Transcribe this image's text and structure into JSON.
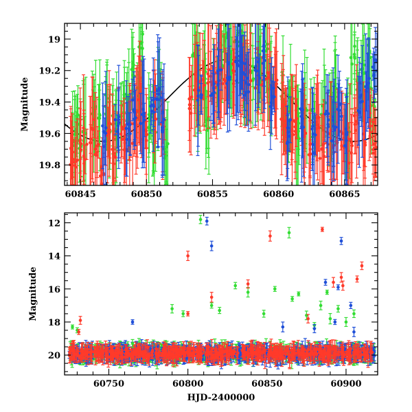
{
  "chart_data": [
    {
      "type": "scatter",
      "panel": "top",
      "xlabel": "",
      "ylabel": "Magnitude",
      "xlim": [
        60843.8,
        60867.5
      ],
      "ylim": [
        19.93,
        18.9
      ],
      "y_inverted": true,
      "xticks": [
        60845,
        60850,
        60855,
        60860,
        60865
      ],
      "xtick_labels": [
        "60845",
        "60850",
        "60855",
        "60860",
        "60865"
      ],
      "yticks": [
        19,
        19.2,
        19.4,
        19.6,
        19.8
      ],
      "ytick_labels": [
        "19",
        "19.2",
        "19.4",
        "19.6",
        "19.8"
      ],
      "model_curve": {
        "kind": "sinusoid",
        "mean": 19.39,
        "amplitude": 0.26,
        "period_days": 19,
        "peak_at": 60856.2,
        "color": "#000000"
      },
      "series_colors": {
        "g": "#33dd33",
        "r": "#ff3a2a",
        "b": "#1f4fd8"
      },
      "series": [
        {
          "color": "#33dd33",
          "points": [
            [
              60844.5,
              19.62
            ],
            [
              60844.7,
              19.55
            ],
            [
              60845.0,
              19.7
            ],
            [
              60845.3,
              19.58
            ],
            [
              60846.0,
              19.48
            ],
            [
              60846.3,
              19.52
            ],
            [
              60847.0,
              19.4
            ],
            [
              60847.3,
              19.55
            ],
            [
              60847.6,
              19.62
            ],
            [
              60848.2,
              19.45
            ],
            [
              60848.5,
              19.35
            ],
            [
              60848.9,
              19.2
            ],
            [
              60849.4,
              19.4
            ],
            [
              60849.6,
              19.05
            ],
            [
              60850.2,
              19.5
            ],
            [
              60850.6,
              19.62
            ],
            [
              60851.0,
              19.35
            ],
            [
              60851.5,
              19.7
            ],
            [
              60853.6,
              19.1
            ],
            [
              60853.9,
              19.3
            ],
            [
              60854.3,
              19.2
            ],
            [
              60854.6,
              19.55
            ],
            [
              60855.2,
              19.3
            ],
            [
              60855.6,
              19.1
            ],
            [
              60856.0,
              19.0
            ],
            [
              60856.4,
              19.15
            ],
            [
              60856.8,
              19.05
            ],
            [
              60857.2,
              18.98
            ],
            [
              60857.5,
              19.2
            ],
            [
              60858.0,
              19.25
            ],
            [
              60858.5,
              19.15
            ],
            [
              60859.0,
              19.05
            ],
            [
              60859.4,
              19.3
            ],
            [
              60860.3,
              19.35
            ],
            [
              60860.6,
              19.55
            ],
            [
              60861.0,
              19.4
            ],
            [
              60861.5,
              19.6
            ],
            [
              60862.0,
              19.45
            ],
            [
              60862.6,
              19.55
            ],
            [
              60863.4,
              19.45
            ],
            [
              60864.0,
              19.5
            ],
            [
              60864.4,
              19.35
            ],
            [
              60865.2,
              19.6
            ],
            [
              60865.6,
              19.1
            ],
            [
              60866.0,
              19.3
            ],
            [
              60866.4,
              19.2
            ],
            [
              60866.8,
              19.05
            ],
            [
              60867.1,
              19.4
            ]
          ]
        },
        {
          "color": "#ff3a2a",
          "points": [
            [
              60844.3,
              19.7
            ],
            [
              60844.6,
              19.8
            ],
            [
              60845.1,
              19.65
            ],
            [
              60845.4,
              19.75
            ],
            [
              60845.9,
              19.6
            ],
            [
              60846.2,
              19.7
            ],
            [
              60846.6,
              19.85
            ],
            [
              60847.1,
              19.62
            ],
            [
              60847.5,
              19.72
            ],
            [
              60848.0,
              19.55
            ],
            [
              60848.4,
              19.68
            ],
            [
              60848.8,
              19.6
            ],
            [
              60849.2,
              19.5
            ],
            [
              60849.5,
              19.4
            ],
            [
              60849.9,
              19.62
            ],
            [
              60850.6,
              19.45
            ],
            [
              60851.2,
              19.55
            ],
            [
              60853.3,
              19.4
            ],
            [
              60853.8,
              19.3
            ],
            [
              60854.2,
              19.28
            ],
            [
              60854.8,
              19.22
            ],
            [
              60855.3,
              19.3
            ],
            [
              60855.7,
              19.2
            ],
            [
              60856.1,
              19.25
            ],
            [
              60856.6,
              19.18
            ],
            [
              60857.0,
              19.3
            ],
            [
              60857.4,
              19.22
            ],
            [
              60857.8,
              19.2
            ],
            [
              60858.3,
              19.25
            ],
            [
              60858.8,
              19.28
            ],
            [
              60859.3,
              19.22
            ],
            [
              60859.7,
              19.3
            ],
            [
              60860.2,
              19.45
            ],
            [
              60860.5,
              19.5
            ],
            [
              60861.0,
              19.55
            ],
            [
              60861.4,
              19.5
            ],
            [
              60861.9,
              19.6
            ],
            [
              60862.4,
              19.65
            ],
            [
              60862.9,
              19.55
            ],
            [
              60863.3,
              19.7
            ],
            [
              60863.8,
              19.62
            ],
            [
              60864.3,
              19.68
            ],
            [
              60864.8,
              19.6
            ],
            [
              60865.4,
              19.7
            ],
            [
              60865.9,
              19.5
            ],
            [
              60866.5,
              19.62
            ],
            [
              60867.0,
              19.55
            ],
            [
              60867.3,
              19.7
            ]
          ]
        },
        {
          "color": "#1f4fd8",
          "points": [
            [
              60846.8,
              19.6
            ],
            [
              60847.8,
              19.55
            ],
            [
              60848.6,
              19.58
            ],
            [
              60849.0,
              19.45
            ],
            [
              60849.7,
              19.5
            ],
            [
              60850.4,
              19.45
            ],
            [
              60850.9,
              19.4
            ],
            [
              60851.3,
              19.52
            ],
            [
              60854.0,
              19.35
            ],
            [
              60855.0,
              19.35
            ],
            [
              60855.5,
              19.25
            ],
            [
              60856.2,
              19.22
            ],
            [
              60856.9,
              19.18
            ],
            [
              60857.3,
              19.15
            ],
            [
              60857.6,
              19.3
            ],
            [
              60858.4,
              19.2
            ],
            [
              60858.9,
              19.1
            ],
            [
              60859.5,
              19.35
            ],
            [
              60860.8,
              19.6
            ],
            [
              60861.7,
              19.5
            ],
            [
              60862.7,
              19.62
            ],
            [
              60863.6,
              19.5
            ],
            [
              60864.2,
              19.55
            ],
            [
              60864.6,
              19.45
            ],
            [
              60865.0,
              19.62
            ],
            [
              60866.2,
              19.4
            ],
            [
              60866.7,
              19.3
            ],
            [
              60867.3,
              19.2
            ]
          ]
        }
      ]
    },
    {
      "type": "scatter",
      "panel": "bottom",
      "xlabel": "HJD-2400000",
      "ylabel": "Magnitude",
      "xlim": [
        60722,
        60920
      ],
      "ylim": [
        21.2,
        11.4
      ],
      "y_inverted": true,
      "xticks": [
        60750,
        60800,
        60850,
        60900
      ],
      "xtick_labels": [
        "60750",
        "60800",
        "60850",
        "60900"
      ],
      "yticks": [
        12,
        14,
        16,
        18,
        20
      ],
      "ytick_labels": [
        "12",
        "14",
        "16",
        "18",
        "20"
      ],
      "baseline_magnitude": 19.9,
      "baseline_scatter": 0.45,
      "baseline_x_range": [
        60725,
        60918
      ],
      "series": [
        {
          "color": "#33dd33",
          "outliers": [
            [
              60727,
              18.3
            ],
            [
              60730,
              18.5
            ],
            [
              60765,
              19.3
            ],
            [
              60790,
              17.2
            ],
            [
              60797,
              17.5
            ],
            [
              60808,
              11.8
            ],
            [
              60815,
              17.0
            ],
            [
              60820,
              17.3
            ],
            [
              60830,
              15.8
            ],
            [
              60838,
              16.2
            ],
            [
              60848,
              17.5
            ],
            [
              60855,
              16.0
            ],
            [
              60864,
              12.6
            ],
            [
              60866,
              16.6
            ],
            [
              60870,
              16.3
            ],
            [
              60875,
              17.6
            ],
            [
              60880,
              18.2
            ],
            [
              60884,
              17.0
            ],
            [
              60888,
              16.2
            ],
            [
              60890,
              17.8
            ],
            [
              60895,
              17.2
            ],
            [
              60900,
              18.0
            ],
            [
              60905,
              17.5
            ]
          ]
        },
        {
          "color": "#ff3a2a",
          "outliers": [
            [
              60732,
              17.9
            ],
            [
              60731,
              18.6
            ],
            [
              60800,
              14.0
            ],
            [
              60815,
              16.5
            ],
            [
              60838,
              15.7
            ],
            [
              60852,
              12.8
            ],
            [
              60876,
              17.8
            ],
            [
              60885,
              12.4
            ],
            [
              60892,
              15.6
            ],
            [
              60897,
              15.3
            ],
            [
              60898,
              15.8
            ],
            [
              60907,
              15.4
            ],
            [
              60910,
              14.6
            ],
            [
              60800,
              17.5
            ]
          ]
        },
        {
          "color": "#1f4fd8",
          "outliers": [
            [
              60765,
              18.0
            ],
            [
              60812,
              11.9
            ],
            [
              60815,
              13.4
            ],
            [
              60860,
              18.3
            ],
            [
              60880,
              18.4
            ],
            [
              60887,
              15.6
            ],
            [
              60893,
              18.0
            ],
            [
              60895,
              15.9
            ],
            [
              60897,
              13.1
            ],
            [
              60903,
              17.0
            ],
            [
              60905,
              18.6
            ]
          ]
        }
      ]
    }
  ]
}
